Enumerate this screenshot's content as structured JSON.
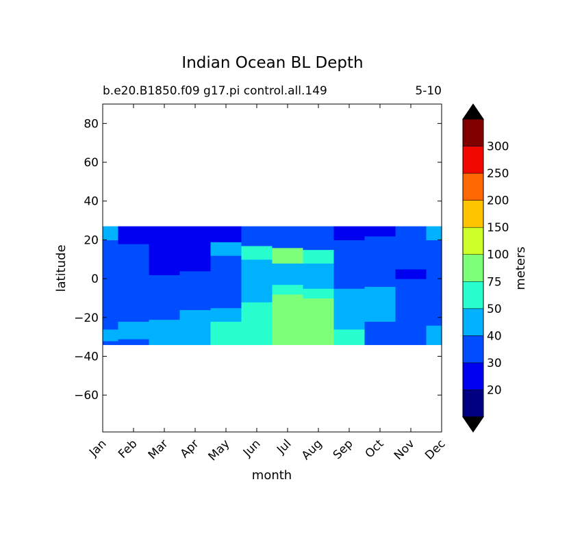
{
  "chart_data": {
    "type": "heatmap",
    "title": "Indian Ocean BL Depth",
    "subtitle_left": "b.e20.B1850.f09 g17.pi control.all.149",
    "subtitle_right": "5-10",
    "xlabel": "month",
    "ylabel": "latitude",
    "x_categories": [
      "Jan",
      "Feb",
      "Mar",
      "Apr",
      "May",
      "Jun",
      "Jul",
      "Aug",
      "Sep",
      "Oct",
      "Nov",
      "Dec"
    ],
    "yticks": [
      80,
      60,
      40,
      20,
      0,
      -20,
      -40,
      -60
    ],
    "ytick_labels": [
      "80",
      "60",
      "40",
      "20",
      "0",
      "−20",
      "−40",
      "−60"
    ],
    "ylim": [
      -79,
      90
    ],
    "data_lat_range": [
      -34,
      27
    ],
    "colorbar": {
      "label": "meters",
      "levels": [
        20,
        30,
        40,
        50,
        75,
        100,
        150,
        200,
        250,
        300
      ],
      "level_labels": [
        "20",
        "30",
        "40",
        "50",
        "75",
        "100",
        "150",
        "200",
        "250",
        "300"
      ],
      "colors": [
        "#000080",
        "#0000f1",
        "#004dff",
        "#00b1ff",
        "#29ffce",
        "#7dff7a",
        "#ceff29",
        "#ffc400",
        "#ff6800",
        "#f10800",
        "#800000"
      ],
      "under_color": "#000000",
      "over_color": "#000000",
      "extend": "both"
    },
    "regions": [
      {
        "month": 0.0,
        "bands": [
          [
            -34,
            -32,
            30
          ],
          [
            -32,
            -26,
            40
          ],
          [
            -26,
            20,
            30
          ],
          [
            20,
            27,
            40
          ]
        ]
      },
      {
        "month": 1.0,
        "bands": [
          [
            -34,
            -31,
            30
          ],
          [
            -31,
            -22,
            40
          ],
          [
            -22,
            18,
            30
          ],
          [
            18,
            27,
            20
          ]
        ]
      },
      {
        "month": 2.0,
        "bands": [
          [
            -34,
            -28,
            40
          ],
          [
            -28,
            -21,
            40
          ],
          [
            -21,
            2,
            30
          ],
          [
            2,
            27,
            20
          ]
        ]
      },
      {
        "month": 3.0,
        "bands": [
          [
            -34,
            -25,
            40
          ],
          [
            -25,
            -16,
            40
          ],
          [
            -16,
            4,
            30
          ],
          [
            4,
            27,
            20
          ]
        ]
      },
      {
        "month": 4.0,
        "bands": [
          [
            -34,
            -22,
            50
          ],
          [
            -22,
            -15,
            40
          ],
          [
            -15,
            12,
            30
          ],
          [
            12,
            19,
            40
          ],
          [
            19,
            27,
            20
          ]
        ]
      },
      {
        "month": 5.0,
        "bands": [
          [
            -34,
            -20,
            50
          ],
          [
            -20,
            -12,
            50
          ],
          [
            -12,
            10,
            40
          ],
          [
            10,
            17,
            50
          ],
          [
            17,
            27,
            30
          ]
        ]
      },
      {
        "month": 6.0,
        "bands": [
          [
            -34,
            -8,
            75
          ],
          [
            -8,
            -3,
            50
          ],
          [
            -3,
            8,
            40
          ],
          [
            8,
            16,
            75
          ],
          [
            16,
            27,
            30
          ]
        ]
      },
      {
        "month": 7.0,
        "bands": [
          [
            -34,
            -10,
            75
          ],
          [
            -10,
            -5,
            50
          ],
          [
            -5,
            8,
            40
          ],
          [
            8,
            15,
            50
          ],
          [
            15,
            27,
            30
          ]
        ]
      },
      {
        "month": 8.0,
        "bands": [
          [
            -34,
            -26,
            50
          ],
          [
            -26,
            -5,
            40
          ],
          [
            -5,
            20,
            30
          ],
          [
            20,
            27,
            20
          ]
        ]
      },
      {
        "month": 9.0,
        "bands": [
          [
            -34,
            -22,
            30
          ],
          [
            -22,
            -4,
            40
          ],
          [
            -4,
            22,
            30
          ],
          [
            22,
            27,
            20
          ]
        ]
      },
      {
        "month": 10.0,
        "bands": [
          [
            -34,
            -28,
            30
          ],
          [
            -28,
            0,
            30
          ],
          [
            0,
            5,
            20
          ],
          [
            5,
            27,
            30
          ]
        ]
      },
      {
        "month": 11.0,
        "bands": [
          [
            -34,
            -24,
            40
          ],
          [
            -24,
            -10,
            30
          ],
          [
            -10,
            20,
            30
          ],
          [
            20,
            27,
            40
          ]
        ]
      }
    ]
  }
}
